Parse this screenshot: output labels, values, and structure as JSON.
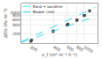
{
  "chart_data": {
    "type": "scatter",
    "xlabel": "v_f (m³ m⁻² h⁻¹)",
    "ylabel": "ΔP/z (Pa m⁻¹)",
    "log": true,
    "xlim": [
      150,
      1500
    ],
    "ylim": [
      100,
      2000
    ],
    "xticks": [
      200,
      400,
      600,
      800,
      1000
    ],
    "yticks": [
      200,
      400,
      600,
      800,
      1000
    ],
    "grid": true,
    "legend": "upper left",
    "series": [
      {
        "type": "scatter",
        "color": "#444444",
        "marker": "square",
        "x": [
          200,
          205,
          390,
          395,
          600,
          605,
          615,
          800,
          810,
          1000,
          1010,
          1180
        ],
        "values": [
          115,
          125,
          240,
          250,
          390,
          400,
          415,
          560,
          575,
          800,
          815,
          1150
        ]
      },
      {
        "name": "Band + bandline",
        "type": "line",
        "color": "#44ddee",
        "line_style": "dashed",
        "x": [
          150,
          1400
        ],
        "values": [
          110,
          1500
        ]
      },
      {
        "name": "Blower (red)",
        "type": "line",
        "color": "#44ddee",
        "line_style": "dashed",
        "x": [
          150,
          1400
        ],
        "values": [
          105,
          750
        ]
      }
    ]
  }
}
